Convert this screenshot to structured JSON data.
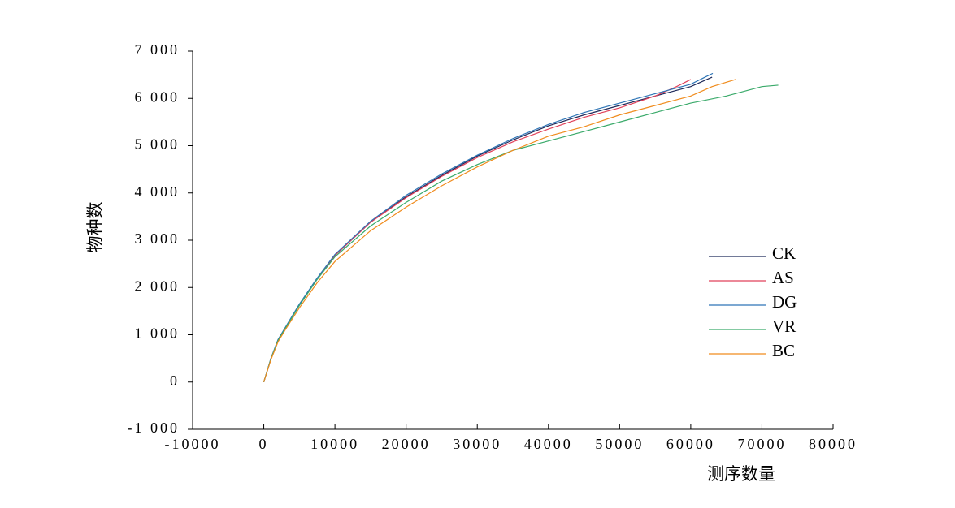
{
  "chart_data": {
    "type": "line",
    "x_label": "测序数量",
    "y_label": "物种数",
    "xlim": [
      -10000,
      80000
    ],
    "xticks": [
      -10000,
      0,
      10000,
      20000,
      30000,
      40000,
      50000,
      60000,
      70000,
      80000
    ],
    "ylim": [
      -1000,
      7000
    ],
    "yticks": [
      {
        "value": -1000,
        "label": "-1 000"
      },
      0,
      {
        "value": 1000,
        "label": "1 000"
      },
      {
        "value": 2000,
        "label": "2 000"
      },
      {
        "value": 3000,
        "label": "3 000"
      },
      {
        "value": 4000,
        "label": "4 000"
      },
      {
        "value": 5000,
        "label": "5 000"
      },
      {
        "value": 6000,
        "label": "6 000"
      },
      {
        "value": 7000,
        "label": "7 000"
      }
    ],
    "grid": false,
    "legend": "right",
    "series": [
      {
        "name": "CK",
        "color": "#1f2a5a",
        "x": [
          0,
          1000,
          2000,
          3000,
          5000,
          7500,
          10000,
          15000,
          20000,
          25000,
          30000,
          35000,
          40000,
          45000,
          50000,
          55000,
          60000,
          63000
        ],
        "values": [
          0,
          480,
          880,
          1130,
          1630,
          2180,
          2680,
          3380,
          3920,
          4370,
          4780,
          5120,
          5420,
          5650,
          5850,
          6050,
          6250,
          6450
        ]
      },
      {
        "name": "AS",
        "color": "#e0405a",
        "x": [
          0,
          1000,
          2000,
          3000,
          5000,
          7500,
          10000,
          15000,
          20000,
          25000,
          30000,
          35000,
          40000,
          45000,
          50000,
          55000,
          58000,
          60000
        ],
        "values": [
          0,
          490,
          890,
          1140,
          1640,
          2190,
          2680,
          3380,
          3900,
          4350,
          4750,
          5080,
          5350,
          5600,
          5800,
          6050,
          6250,
          6400
        ]
      },
      {
        "name": "DG",
        "color": "#2e75b6",
        "x": [
          0,
          1000,
          2000,
          3000,
          5000,
          7500,
          10000,
          15000,
          20000,
          25000,
          30000,
          35000,
          40000,
          45000,
          50000,
          55000,
          60000,
          62000,
          63100
        ],
        "values": [
          0,
          500,
          900,
          1150,
          1650,
          2200,
          2700,
          3400,
          3950,
          4400,
          4800,
          5150,
          5450,
          5700,
          5900,
          6100,
          6300,
          6450,
          6530
        ]
      },
      {
        "name": "VR",
        "color": "#3aaa6a",
        "x": [
          0,
          1000,
          2000,
          3000,
          5000,
          7500,
          10000,
          15000,
          20000,
          25000,
          30000,
          35000,
          40000,
          45000,
          50000,
          55000,
          60000,
          65000,
          70000,
          72300
        ],
        "values": [
          0,
          490,
          880,
          1130,
          1620,
          2170,
          2650,
          3300,
          3800,
          4250,
          4600,
          4900,
          5100,
          5300,
          5500,
          5700,
          5900,
          6050,
          6250,
          6280
        ]
      },
      {
        "name": "BC",
        "color": "#f08c1e",
        "x": [
          0,
          1000,
          2000,
          3000,
          5000,
          7500,
          10000,
          15000,
          20000,
          25000,
          30000,
          35000,
          40000,
          45000,
          50000,
          55000,
          60000,
          63000,
          66300
        ],
        "values": [
          0,
          470,
          850,
          1100,
          1570,
          2100,
          2550,
          3200,
          3700,
          4150,
          4550,
          4900,
          5200,
          5400,
          5650,
          5850,
          6050,
          6250,
          6400
        ]
      }
    ]
  }
}
